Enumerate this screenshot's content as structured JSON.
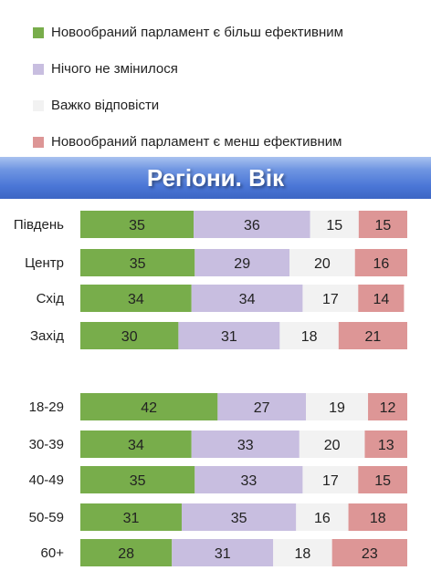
{
  "legend": [
    {
      "label": "Новообраний парламент є більш ефективним",
      "color": "#78ad4b"
    },
    {
      "label": "Нічого не змінилося",
      "color": "#c8bee0"
    },
    {
      "label": "Важко відповісти",
      "color": "#f2f2f2"
    },
    {
      "label": "Новообраний парламент є менш ефективним",
      "color": "#dd9696"
    }
  ],
  "banner": {
    "title": "Регіони. Вік"
  },
  "chart_data": {
    "type": "bar",
    "orientation": "horizontal",
    "stacked": true,
    "title": "Регіони. Вік",
    "groups": [
      {
        "categories": [
          "Південь",
          "Центр",
          "Схід",
          "Захід"
        ]
      },
      {
        "categories": [
          "18-29",
          "30-39",
          "40-49",
          "50-59",
          "60+"
        ]
      }
    ],
    "categories": [
      "Південь",
      "Центр",
      "Схід",
      "Захід",
      "18-29",
      "30-39",
      "40-49",
      "50-59",
      "60+"
    ],
    "series": [
      {
        "name": "Новообраний парламент є більш ефективним",
        "color": "#78ad4b",
        "values": [
          35,
          35,
          34,
          30,
          42,
          34,
          35,
          31,
          28
        ]
      },
      {
        "name": "Нічого не змінилося",
        "color": "#c8bee0",
        "values": [
          36,
          29,
          34,
          31,
          27,
          33,
          33,
          35,
          31
        ]
      },
      {
        "name": "Важко відповісти",
        "color": "#f2f2f2",
        "values": [
          15,
          20,
          17,
          18,
          19,
          20,
          17,
          16,
          18
        ]
      },
      {
        "name": "Новообраний парламент є менш ефективним",
        "color": "#dd9696",
        "values": [
          15,
          16,
          14,
          21,
          12,
          13,
          15,
          18,
          23
        ]
      }
    ],
    "xlim": [
      0,
      100
    ],
    "grid": false,
    "legend_position": "top"
  }
}
